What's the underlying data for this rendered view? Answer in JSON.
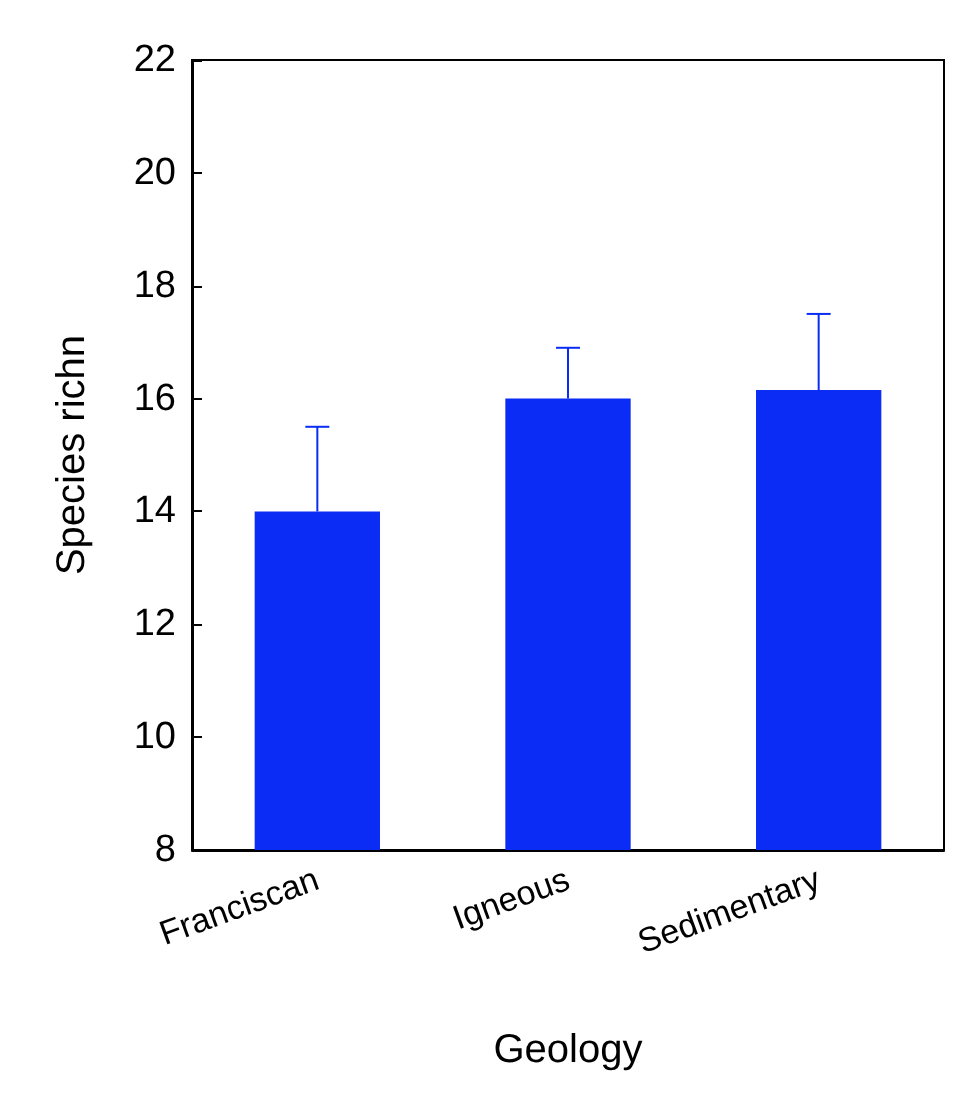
{
  "chart_data": {
    "type": "bar",
    "xlabel": "Geology",
    "ylabel": "Species richn",
    "categories": [
      "Franciscan",
      "Igneous",
      "Sedimentary"
    ],
    "values": [
      14,
      16,
      16.15
    ],
    "color": "#0a2cf5",
    "errors": [
      [
        14,
        15.5
      ],
      [
        16,
        16.9
      ],
      [
        16.15,
        17.5
      ]
    ],
    "ylim": [
      8,
      22
    ],
    "yticks": [
      8,
      10,
      12,
      14,
      16,
      18,
      20,
      22
    ],
    "grid": false
  }
}
